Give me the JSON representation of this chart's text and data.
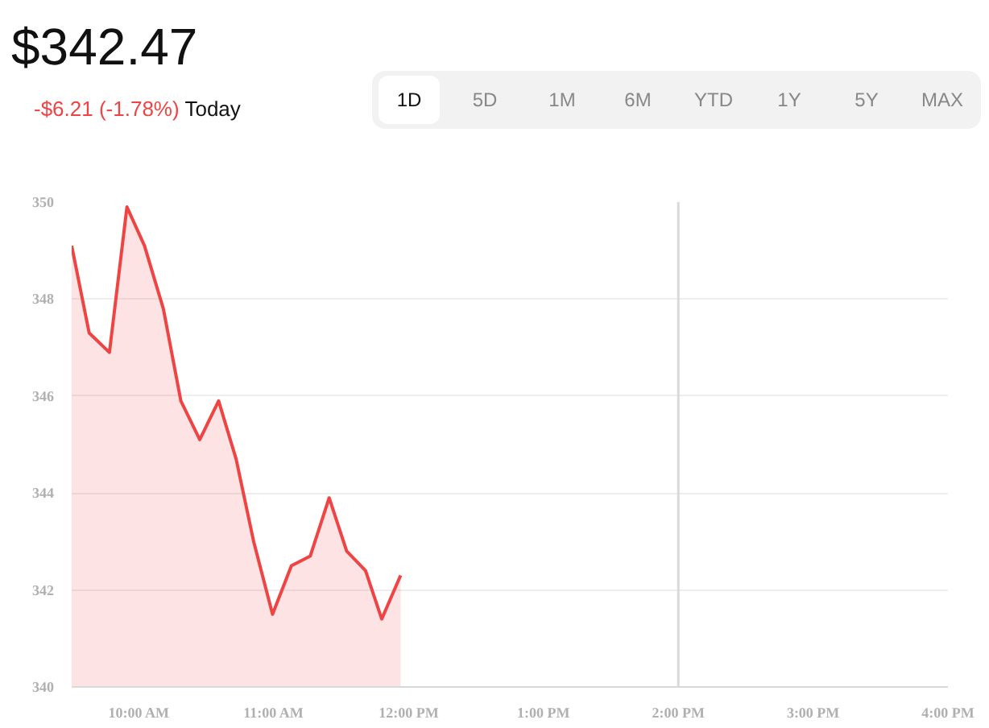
{
  "chart_data": {
    "type": "area",
    "title": "$342.47",
    "subtitle": "-$6.21 (-1.78%) Today",
    "annotations": [
      "1D",
      "5D",
      "1M",
      "6M",
      "YTD",
      "1Y",
      "5Y",
      "MAX"
    ],
    "x": [
      9.5,
      9.63,
      9.78,
      9.91,
      10.04,
      10.18,
      10.31,
      10.45,
      10.59,
      10.72,
      10.85,
      10.99,
      11.13,
      11.27,
      11.41,
      11.54,
      11.68,
      11.8,
      11.94
    ],
    "series": [
      {
        "color": "#ef4444",
        "values": [
          349.1,
          347.3,
          346.9,
          349.9,
          349.1,
          347.8,
          345.9,
          345.1,
          345.9,
          344.7,
          343.0,
          341.5,
          342.5,
          342.7,
          343.9,
          342.8,
          342.4,
          341.4,
          342.3
        ]
      }
    ],
    "xlim": [
      9.5,
      16
    ],
    "xticks": [
      {
        "value": 10,
        "label": "10:00 AM"
      },
      {
        "value": 11,
        "label": "11:00 AM"
      },
      {
        "value": 12,
        "label": "12:00 PM"
      },
      {
        "value": 13,
        "label": "1:00 PM"
      },
      {
        "value": 14,
        "label": "2:00 PM"
      },
      {
        "value": 15,
        "label": "3:00 PM"
      },
      {
        "value": 16,
        "label": "4:00 PM"
      }
    ],
    "ylim": [
      340,
      350
    ],
    "yticks": [
      340,
      342,
      344,
      346,
      348,
      350
    ],
    "ref_lines": [
      {
        "axis": "x",
        "value": 14,
        "color": "#d9d9d9"
      }
    ],
    "grid": "y"
  }
}
